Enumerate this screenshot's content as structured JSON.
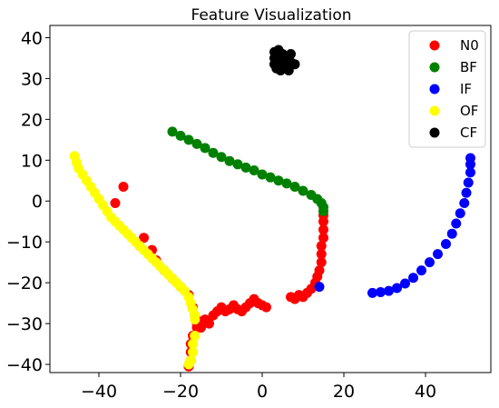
{
  "chart_data": {
    "type": "scatter",
    "title": "Feature Visualization",
    "xlabel": "",
    "ylabel": "",
    "xlim": [
      -52,
      56
    ],
    "ylim": [
      -42,
      43
    ],
    "xticks": [
      -40,
      -20,
      0,
      20,
      40
    ],
    "yticks": [
      -40,
      -30,
      -20,
      -10,
      0,
      10,
      20,
      30,
      40
    ],
    "grid": false,
    "legend_position": "top-right",
    "series": [
      {
        "name": "N0",
        "color": "#ff0000",
        "points": [
          [
            -34,
            3.5
          ],
          [
            -36,
            -0.5
          ],
          [
            -29,
            -9
          ],
          [
            -30,
            -11
          ],
          [
            -27,
            -12
          ],
          [
            -26,
            -14.5
          ],
          [
            -24,
            -17
          ],
          [
            -22,
            -19
          ],
          [
            -20,
            -21
          ],
          [
            -18,
            -23
          ],
          [
            -17,
            -26
          ],
          [
            -16.5,
            -28
          ],
          [
            -16,
            -30
          ],
          [
            -16,
            -31
          ],
          [
            -15,
            -29.5
          ],
          [
            -15,
            -31
          ],
          [
            -14,
            -29
          ],
          [
            -13,
            -30
          ],
          [
            -12,
            -28
          ],
          [
            -11,
            -27
          ],
          [
            -10,
            -26
          ],
          [
            -9,
            -27
          ],
          [
            -8,
            -26.5
          ],
          [
            -7,
            -25.5
          ],
          [
            -6,
            -26.5
          ],
          [
            -5,
            -27
          ],
          [
            -4,
            -26
          ],
          [
            -3,
            -25
          ],
          [
            -2,
            -24
          ],
          [
            -1,
            -25
          ],
          [
            0,
            -25.5
          ],
          [
            1,
            -26
          ],
          [
            -17,
            -33
          ],
          [
            -17.5,
            -35
          ],
          [
            -17.5,
            -37
          ],
          [
            -17.5,
            -39
          ],
          [
            -18,
            -40.5
          ],
          [
            7,
            -23.5
          ],
          [
            8,
            -24
          ],
          [
            9,
            -23
          ],
          [
            10,
            -23.5
          ],
          [
            11,
            -22.5
          ],
          [
            12,
            -21.5
          ],
          [
            13,
            -20
          ],
          [
            13.5,
            -18.5
          ],
          [
            14,
            -17
          ],
          [
            14.5,
            -15
          ],
          [
            14.5,
            -13
          ],
          [
            14.5,
            -11
          ],
          [
            15,
            -9
          ],
          [
            15,
            -7
          ],
          [
            15,
            -5
          ],
          [
            15,
            -3.5
          ]
        ]
      },
      {
        "name": "BF",
        "color": "#008000",
        "points": [
          [
            -22,
            17
          ],
          [
            -20,
            16
          ],
          [
            -18,
            15
          ],
          [
            -16,
            14
          ],
          [
            -14,
            13
          ],
          [
            -12,
            11.8
          ],
          [
            -10,
            10.8
          ],
          [
            -8,
            9.8
          ],
          [
            -6,
            9
          ],
          [
            -4,
            8.2
          ],
          [
            -2,
            7.5
          ],
          [
            0,
            6.5
          ],
          [
            2,
            5.8
          ],
          [
            4,
            5
          ],
          [
            6,
            4.3
          ],
          [
            8,
            3.5
          ],
          [
            10,
            2.5
          ],
          [
            12,
            1.5
          ],
          [
            13.5,
            0.5
          ],
          [
            14.5,
            -0.5
          ],
          [
            15,
            -1.5
          ],
          [
            15,
            -2.5
          ]
        ]
      },
      {
        "name": "IF",
        "color": "#0000ff",
        "points": [
          [
            14,
            -21
          ],
          [
            27,
            -22.5
          ],
          [
            29,
            -22.3
          ],
          [
            31,
            -22
          ],
          [
            33,
            -21.3
          ],
          [
            35,
            -20.2
          ],
          [
            37,
            -18.8
          ],
          [
            39,
            -17
          ],
          [
            41,
            -15
          ],
          [
            43,
            -13
          ],
          [
            45,
            -10.5
          ],
          [
            46.5,
            -8
          ],
          [
            47.5,
            -5.5
          ],
          [
            48.5,
            -3
          ],
          [
            49.5,
            -0.5
          ],
          [
            50,
            2
          ],
          [
            50.5,
            4.5
          ],
          [
            51,
            7
          ],
          [
            51,
            9
          ],
          [
            51,
            10.5
          ]
        ]
      },
      {
        "name": "OF",
        "color": "#ffff00",
        "points": [
          [
            -46,
            11
          ],
          [
            -45.5,
            9.5
          ],
          [
            -45,
            8
          ],
          [
            -44,
            6.5
          ],
          [
            -43,
            5
          ],
          [
            -42,
            3.5
          ],
          [
            -41,
            2
          ],
          [
            -40,
            0.5
          ],
          [
            -39,
            -1
          ],
          [
            -38,
            -2.5
          ],
          [
            -37,
            -4
          ],
          [
            -36,
            -5
          ],
          [
            -35,
            -6
          ],
          [
            -34,
            -7
          ],
          [
            -33,
            -8
          ],
          [
            -32,
            -9
          ],
          [
            -31,
            -10
          ],
          [
            -30,
            -11
          ],
          [
            -29,
            -12
          ],
          [
            -28,
            -13
          ],
          [
            -27,
            -14
          ],
          [
            -26,
            -15
          ],
          [
            -25,
            -16
          ],
          [
            -24,
            -17
          ],
          [
            -23,
            -18
          ],
          [
            -22,
            -19
          ],
          [
            -21,
            -20
          ],
          [
            -20,
            -21
          ],
          [
            -19,
            -22
          ],
          [
            -18,
            -23.5
          ],
          [
            -17.5,
            -25
          ],
          [
            -17,
            -26.5
          ],
          [
            -16.5,
            -28
          ],
          [
            -16.5,
            -29
          ],
          [
            -16.5,
            -33
          ],
          [
            -17,
            -35
          ],
          [
            -17,
            -37
          ],
          [
            -17.5,
            -39
          ],
          [
            -18,
            -40
          ]
        ]
      },
      {
        "name": "CF",
        "color": "#000000",
        "points": [
          [
            3,
            36.5
          ],
          [
            4,
            37
          ],
          [
            5,
            36
          ],
          [
            6,
            35
          ],
          [
            7,
            36
          ],
          [
            3,
            35
          ],
          [
            4,
            34
          ],
          [
            5,
            33.5
          ],
          [
            6,
            33
          ],
          [
            7,
            34
          ],
          [
            8,
            33.5
          ],
          [
            3.5,
            32.5
          ],
          [
            4.5,
            32
          ],
          [
            5.5,
            32.5
          ],
          [
            6.5,
            32
          ],
          [
            3,
            33.5
          ]
        ]
      }
    ]
  }
}
